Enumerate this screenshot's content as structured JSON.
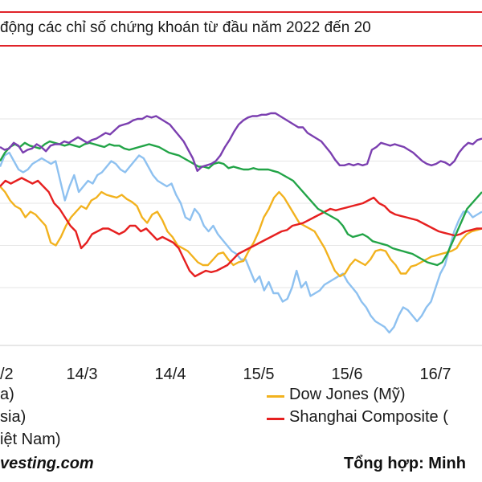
{
  "chart_data": {
    "type": "line",
    "title": "động các chỉ số chứng khoán từ đầu năm 2022 đến 20",
    "x_tick_labels": [
      "/2",
      "14/3",
      "14/4",
      "15/5",
      "15/6",
      "16/7"
    ],
    "grid": "horizontal",
    "legend": [
      {
        "label": "a)",
        "color": "#7b3fb0"
      },
      {
        "label": "sia)",
        "color": "#8ec1f0"
      },
      {
        "label": "iệt Nam)",
        "color": "#22a447"
      },
      {
        "label": "Dow Jones (Mỹ)",
        "color": "#f2b21e"
      },
      {
        "label": "Shanghai Composite (",
        "color": "#e62020"
      }
    ],
    "series": [
      {
        "color": "#7b3fb0",
        "values": [
          0.0,
          -1.0,
          -0.5,
          1.5,
          0.5,
          -2.0,
          -1.0,
          -0.5,
          1.0,
          0.0,
          -1.5,
          0.5,
          1.0,
          1.0,
          2.0,
          1.5,
          2.5,
          3.5,
          2.5,
          1.5,
          2.5,
          3.0,
          4.0,
          5.0,
          4.5,
          6.0,
          7.5,
          8.0,
          8.5,
          9.5,
          10.0,
          10.0,
          11.0,
          10.5,
          11.0,
          10.0,
          9.0,
          8.0,
          6.0,
          4.0,
          2.0,
          -1.0,
          -4.0,
          -8.5,
          -7.0,
          -6.5,
          -6.0,
          -5.0,
          -3.0,
          0.0,
          2.5,
          5.5,
          8.0,
          9.5,
          10.5,
          11.0,
          11.0,
          11.5,
          11.5,
          12.0,
          12.0,
          11.0,
          10.0,
          9.0,
          8.0,
          7.0,
          7.0,
          5.0,
          4.0,
          3.0,
          2.0,
          0.0,
          -2.0,
          -4.5,
          -6.5,
          -6.5,
          -6.0,
          -6.5,
          -6.0,
          -6.5,
          -6.0,
          -1.0,
          0.0,
          1.5,
          1.0,
          0.5,
          1.0,
          0.5,
          0.0,
          -1.0,
          -2.0,
          -3.5,
          -5.0,
          -6.0,
          -6.5,
          -6.0,
          -5.0,
          -5.5,
          -6.5,
          -5.0,
          -2.0,
          0.0,
          1.5,
          1.0,
          2.5,
          3.0
        ]
      },
      {
        "color": "#8ec1f0",
        "values": [
          -7.0,
          -3.0,
          -2.0,
          -5.0,
          -8.0,
          -9.0,
          -8.0,
          -6.0,
          -5.0,
          -4.0,
          -5.0,
          -6.0,
          -5.0,
          -12.0,
          -19.0,
          -14.0,
          -10.0,
          -16.0,
          -14.0,
          -12.0,
          -13.0,
          -10.0,
          -9.0,
          -7.0,
          -5.0,
          -6.0,
          -8.0,
          -9.0,
          -7.0,
          -5.0,
          -3.0,
          -4.0,
          -7.0,
          -10.0,
          -12.0,
          -13.0,
          -14.0,
          -13.0,
          -17.0,
          -20.0,
          -25.0,
          -26.0,
          -22.0,
          -24.0,
          -28.0,
          -30.0,
          -28.0,
          -31.0,
          -33.0,
          -35.0,
          -37.0,
          -38.0,
          -40.0,
          -40.0,
          -44.0,
          -48.0,
          -46.0,
          -51.0,
          -48.0,
          -52.0,
          -52.0,
          -55.0,
          -54.0,
          -50.0,
          -44.0,
          -50.0,
          -48.0,
          -53.0,
          -52.0,
          -51.0,
          -49.0,
          -48.0,
          -47.0,
          -46.0,
          -45.0,
          -48.0,
          -50.0,
          -52.0,
          -55.0,
          -57.0,
          -60.0,
          -62.0,
          -63.0,
          -64.0,
          -66.0,
          -64.0,
          -60.0,
          -57.0,
          -58.0,
          -60.0,
          -62.0,
          -60.0,
          -57.0,
          -55.0,
          -50.0,
          -45.0,
          -42.0,
          -36.0,
          -30.0,
          -26.0,
          -23.0,
          -23.0,
          -25.0,
          -24.0,
          -23.0
        ]
      },
      {
        "color": "#22a447",
        "values": [
          -5.0,
          -2.0,
          0.0,
          1.0,
          0.0,
          1.5,
          0.5,
          0.0,
          -0.5,
          1.0,
          2.0,
          1.5,
          1.0,
          0.5,
          1.0,
          0.5,
          0.0,
          1.0,
          1.5,
          1.0,
          0.5,
          0.0,
          1.0,
          0.5,
          0.5,
          -0.5,
          -1.0,
          -0.5,
          0.0,
          0.5,
          1.0,
          0.5,
          0.0,
          -1.0,
          -2.0,
          -2.5,
          -3.0,
          -4.0,
          -5.0,
          -6.0,
          -7.0,
          -7.0,
          -7.5,
          -6.0,
          -5.5,
          -6.0,
          -7.5,
          -7.0,
          -7.5,
          -8.0,
          -8.0,
          -7.5,
          -8.0,
          -8.0,
          -8.0,
          -8.5,
          -9.0,
          -10.0,
          -11.0,
          -12.0,
          -14.0,
          -16.0,
          -18.0,
          -20.0,
          -22.0,
          -23.0,
          -24.0,
          -25.0,
          -26.0,
          -28.0,
          -31.0,
          -32.0,
          -31.5,
          -31.0,
          -32.0,
          -33.5,
          -34.0,
          -34.5,
          -35.0,
          -36.0,
          -36.5,
          -37.0,
          -37.5,
          -38.0,
          -39.0,
          -40.0,
          -41.0,
          -41.5,
          -42.0,
          -41.0,
          -38.0,
          -34.0,
          -30.0,
          -26.0,
          -22.0,
          -20.0,
          -18.0,
          -16.0
        ]
      },
      {
        "color": "#f2b21e",
        "values": [
          -14.0,
          -16.0,
          -19.0,
          -21.0,
          -22.0,
          -25.0,
          -23.0,
          -24.0,
          -26.0,
          -28.0,
          -34.0,
          -35.0,
          -32.0,
          -28.0,
          -25.0,
          -23.0,
          -21.0,
          -22.0,
          -19.0,
          -18.0,
          -16.0,
          -17.0,
          -17.5,
          -18.0,
          -17.0,
          -18.5,
          -19.5,
          -21.0,
          -25.0,
          -27.0,
          -24.0,
          -23.0,
          -26.0,
          -30.0,
          -32.0,
          -35.0,
          -36.0,
          -37.0,
          -39.0,
          -41.0,
          -42.0,
          -42.0,
          -40.0,
          -38.0,
          -37.5,
          -40.0,
          -42.0,
          -41.0,
          -40.5,
          -37.0,
          -34.0,
          -30.0,
          -25.0,
          -22.0,
          -18.0,
          -16.0,
          -18.0,
          -21.0,
          -24.0,
          -27.0,
          -28.0,
          -29.0,
          -30.0,
          -33.0,
          -36.0,
          -40.0,
          -44.0,
          -46.0,
          -45.0,
          -42.0,
          -40.0,
          -41.0,
          -42.0,
          -40.0,
          -37.0,
          -36.5,
          -37.0,
          -40.0,
          -42.0,
          -45.0,
          -45.0,
          -42.5,
          -42.0,
          -41.0,
          -40.0,
          -39.0,
          -38.5,
          -38.0,
          -37.5,
          -37.0,
          -36.0,
          -33.0,
          -31.0,
          -30.0,
          -29.5,
          -29.0
        ]
      },
      {
        "color": "#e62020",
        "values": [
          -14.0,
          -12.0,
          -13.0,
          -12.0,
          -11.0,
          -12.0,
          -13.0,
          -12.0,
          -14.0,
          -16.0,
          -20.0,
          -22.0,
          -25.0,
          -28.0,
          -30.0,
          -36.0,
          -34.0,
          -31.0,
          -30.0,
          -29.0,
          -29.0,
          -30.0,
          -31.0,
          -30.0,
          -28.0,
          -28.0,
          -30.0,
          -29.0,
          -31.0,
          -33.0,
          -32.0,
          -33.0,
          -34.0,
          -36.0,
          -40.0,
          -44.0,
          -46.0,
          -45.0,
          -44.0,
          -44.5,
          -44.0,
          -43.0,
          -42.0,
          -40.0,
          -38.0,
          -37.0,
          -36.0,
          -35.0,
          -34.0,
          -33.0,
          -32.0,
          -31.0,
          -30.0,
          -29.5,
          -28.0,
          -27.5,
          -27.0,
          -26.0,
          -25.0,
          -24.0,
          -23.0,
          -22.0,
          -22.5,
          -22.0,
          -21.5,
          -21.0,
          -20.5,
          -20.0,
          -19.0,
          -18.0,
          -20.0,
          -21.0,
          -23.0,
          -24.0,
          -24.5,
          -25.0,
          -25.5,
          -26.0,
          -27.0,
          -28.0,
          -29.0,
          -30.0,
          -30.5,
          -31.0,
          -31.5,
          -31.0,
          -30.0,
          -29.5,
          -29.0,
          -29.0
        ]
      }
    ]
  },
  "source": {
    "left": "vesting.com",
    "right": "Tổng hợp: Minh"
  }
}
